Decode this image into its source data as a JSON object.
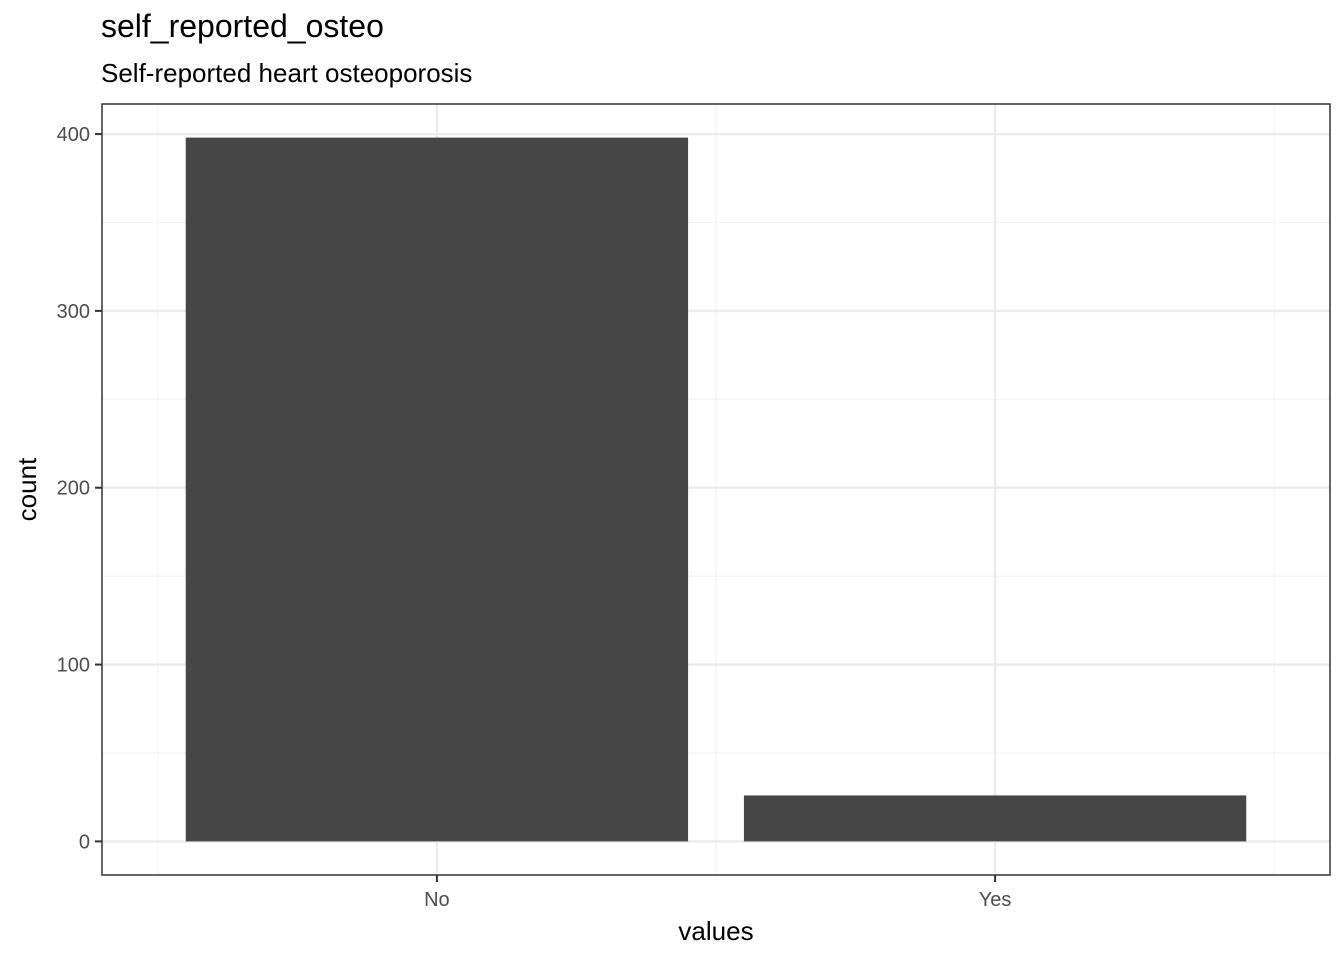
{
  "chart_data": {
    "type": "bar",
    "title": "self_reported_osteo",
    "subtitle": "Self-reported heart osteoporosis",
    "categories": [
      "No",
      "Yes"
    ],
    "values": [
      398,
      26
    ],
    "xlabel": "values",
    "ylabel": "count",
    "ylim": [
      -19,
      417
    ],
    "yticks": [
      0,
      100,
      200,
      300,
      400
    ],
    "grid": true,
    "bar_color": "#474747",
    "panel_border_color": "#333333",
    "grid_major_color": "#ebebeb",
    "grid_minor_color": "#f3f3f3"
  }
}
